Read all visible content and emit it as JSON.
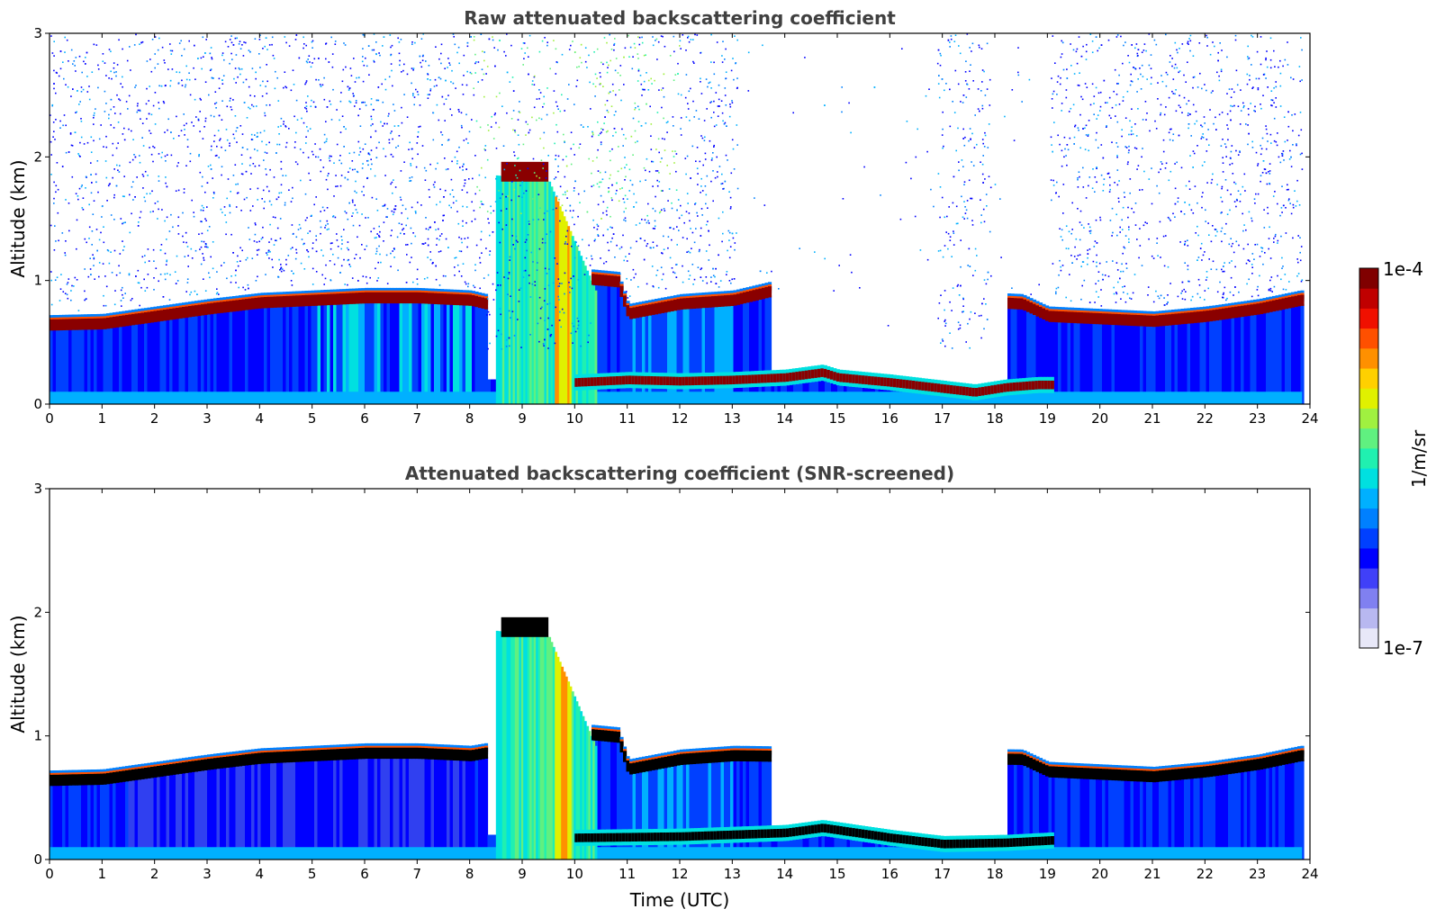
{
  "chart_data": [
    {
      "type": "heatmap",
      "title": "Raw attenuated backscattering coefficient",
      "xlabel": "",
      "ylabel": "Altitude (km)",
      "xlim": [
        0,
        24
      ],
      "ylim": [
        0,
        3
      ],
      "xticks": [
        "0",
        "1",
        "2",
        "3",
        "4",
        "5",
        "6",
        "7",
        "8",
        "9",
        "10",
        "11",
        "12",
        "13",
        "14",
        "15",
        "16",
        "17",
        "18",
        "19",
        "20",
        "21",
        "22",
        "23",
        "24"
      ],
      "yticks": [
        "0",
        "1",
        "2",
        "3"
      ],
      "mode": "raw",
      "layers": [
        {
          "name": "cloud-base",
          "points": [
            [
              0.0,
              0.65
            ],
            [
              1.0,
              0.66
            ],
            [
              2.0,
              0.72
            ],
            [
              3.0,
              0.78
            ],
            [
              4.0,
              0.83
            ],
            [
              5.0,
              0.85
            ],
            [
              6.0,
              0.87
            ],
            [
              7.0,
              0.87
            ],
            [
              8.0,
              0.85
            ],
            [
              8.3,
              0.82
            ],
            [
              10.3,
              1.02
            ],
            [
              10.8,
              1.0
            ],
            [
              11.0,
              0.74
            ],
            [
              11.5,
              0.78
            ],
            [
              12.0,
              0.82
            ],
            [
              13.0,
              0.85
            ],
            [
              13.7,
              0.92
            ],
            [
              18.5,
              0.82
            ],
            [
              19.0,
              0.72
            ],
            [
              20.0,
              0.7
            ],
            [
              21.0,
              0.68
            ],
            [
              22.0,
              0.72
            ],
            [
              23.0,
              0.78
            ],
            [
              23.8,
              0.85
            ]
          ]
        },
        {
          "name": "elevated-layer",
          "points": [
            [
              8.6,
              1.9
            ],
            [
              9.5,
              1.86
            ]
          ]
        },
        {
          "name": "surface-layer",
          "points": [
            [
              10.0,
              0.18
            ],
            [
              11.0,
              0.2
            ],
            [
              12.0,
              0.19
            ],
            [
              13.0,
              0.2
            ],
            [
              14.0,
              0.22
            ],
            [
              14.7,
              0.26
            ],
            [
              15.0,
              0.22
            ],
            [
              16.0,
              0.18
            ],
            [
              17.0,
              0.13
            ],
            [
              17.6,
              0.1
            ],
            [
              18.2,
              0.14
            ],
            [
              18.8,
              0.16
            ],
            [
              19.1,
              0.16
            ]
          ]
        },
        {
          "name": "virga-column",
          "points": [
            [
              9.4,
              0.0
            ],
            [
              9.4,
              1.85
            ]
          ]
        }
      ]
    },
    {
      "type": "heatmap",
      "title": "Attenuated backscattering coefficient (SNR-screened)",
      "xlabel": "Time (UTC)",
      "ylabel": "Altitude (km)",
      "xlim": [
        0,
        24
      ],
      "ylim": [
        0,
        3
      ],
      "xticks": [
        "0",
        "1",
        "2",
        "3",
        "4",
        "5",
        "6",
        "7",
        "8",
        "9",
        "10",
        "11",
        "12",
        "13",
        "14",
        "15",
        "16",
        "17",
        "18",
        "19",
        "20",
        "21",
        "22",
        "23",
        "24"
      ],
      "yticks": [
        "0",
        "1",
        "2",
        "3"
      ],
      "mode": "screened",
      "layers": [
        {
          "name": "cloud-base",
          "points": [
            [
              0.0,
              0.65
            ],
            [
              1.0,
              0.66
            ],
            [
              2.0,
              0.72
            ],
            [
              3.0,
              0.78
            ],
            [
              4.0,
              0.83
            ],
            [
              5.0,
              0.85
            ],
            [
              6.0,
              0.87
            ],
            [
              7.0,
              0.87
            ],
            [
              8.0,
              0.85
            ],
            [
              10.3,
              1.02
            ],
            [
              10.8,
              1.0
            ],
            [
              11.0,
              0.74
            ],
            [
              12.0,
              0.82
            ],
            [
              13.0,
              0.85
            ],
            [
              18.5,
              0.82
            ],
            [
              19.0,
              0.72
            ],
            [
              20.0,
              0.7
            ],
            [
              21.0,
              0.68
            ],
            [
              22.0,
              0.72
            ],
            [
              23.0,
              0.78
            ],
            [
              23.8,
              0.85
            ]
          ]
        },
        {
          "name": "elevated-layer",
          "points": [
            [
              8.6,
              1.9
            ],
            [
              9.5,
              1.86
            ]
          ]
        },
        {
          "name": "surface-layer",
          "points": [
            [
              10.0,
              0.18
            ],
            [
              12.0,
              0.19
            ],
            [
              14.0,
              0.22
            ],
            [
              14.7,
              0.26
            ],
            [
              16.0,
              0.18
            ],
            [
              17.0,
              0.13
            ],
            [
              18.2,
              0.14
            ],
            [
              19.1,
              0.16
            ]
          ]
        }
      ]
    }
  ],
  "colorbar": {
    "label": "1/m/sr",
    "max_label": "1e-4",
    "min_label": "1e-7",
    "colors": [
      "#e8e8f8",
      "#b8b8f0",
      "#8080f0",
      "#4040f8",
      "#0000ff",
      "#0040ff",
      "#0080ff",
      "#00b0ff",
      "#00e0e0",
      "#20f0b0",
      "#60f080",
      "#a0f040",
      "#e0f000",
      "#ffd000",
      "#ff9000",
      "#ff5000",
      "#f01000",
      "#c00000",
      "#800000"
    ]
  }
}
